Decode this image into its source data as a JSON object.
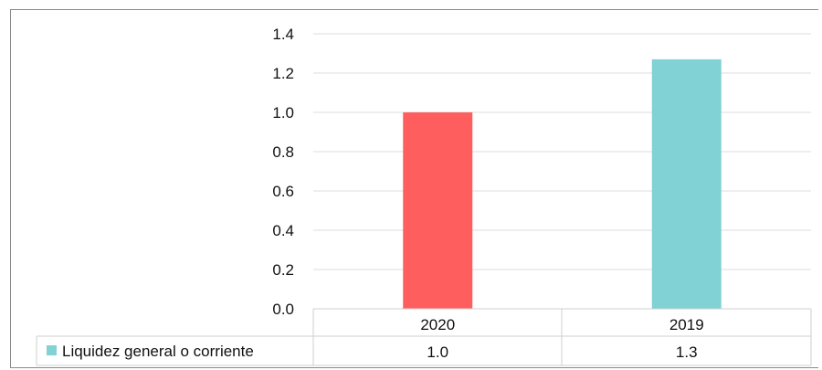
{
  "chart_data": {
    "type": "bar",
    "categories": [
      "2020",
      "2019"
    ],
    "series": [
      {
        "name": "Liquidez general o corriente",
        "values": [
          1.0,
          1.27
        ],
        "value_labels": [
          "1.0",
          "1.3"
        ],
        "colors": [
          "#ff5e5e",
          "#80d2d4"
        ],
        "legend_color": "#80d2d4"
      }
    ],
    "yticks": [
      "0.0",
      "0.2",
      "0.4",
      "0.6",
      "0.8",
      "1.0",
      "1.2",
      "1.4"
    ],
    "ylim": [
      0,
      1.4
    ],
    "grid": true,
    "legend": "data table row"
  }
}
